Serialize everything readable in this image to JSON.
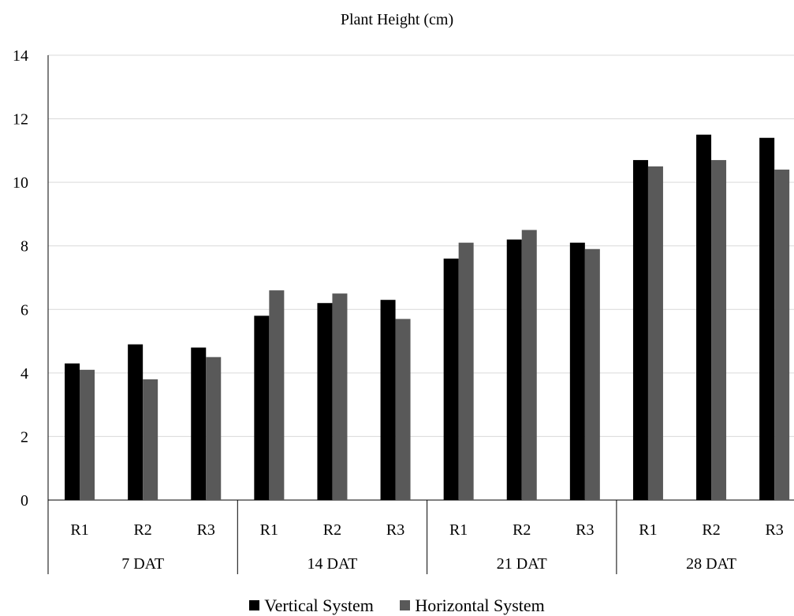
{
  "chart_data": {
    "type": "bar",
    "title": "Plant Height (cm)",
    "xlabel": "",
    "ylabel": "",
    "ylim": [
      0,
      14
    ],
    "yticks": [
      0,
      2,
      4,
      6,
      8,
      10,
      12,
      14
    ],
    "grid": true,
    "legend_position": "bottom",
    "groups": [
      {
        "label": "7 DAT",
        "categories": [
          "R1",
          "R2",
          "R3"
        ]
      },
      {
        "label": "14 DAT",
        "categories": [
          "R1",
          "R2",
          "R3"
        ]
      },
      {
        "label": "21 DAT",
        "categories": [
          "R1",
          "R2",
          "R3"
        ]
      },
      {
        "label": "28 DAT",
        "categories": [
          "R1",
          "R2",
          "R3"
        ]
      }
    ],
    "series": [
      {
        "name": "Vertical System",
        "color": "#000000",
        "values": [
          4.3,
          4.9,
          4.8,
          5.8,
          6.2,
          6.3,
          7.6,
          8.2,
          8.1,
          10.7,
          11.5,
          11.4
        ]
      },
      {
        "name": "Horizontal System",
        "color": "#595959",
        "values": [
          4.1,
          3.8,
          4.5,
          6.6,
          6.5,
          5.7,
          8.1,
          8.5,
          7.9,
          10.5,
          10.7,
          10.4
        ]
      }
    ]
  }
}
